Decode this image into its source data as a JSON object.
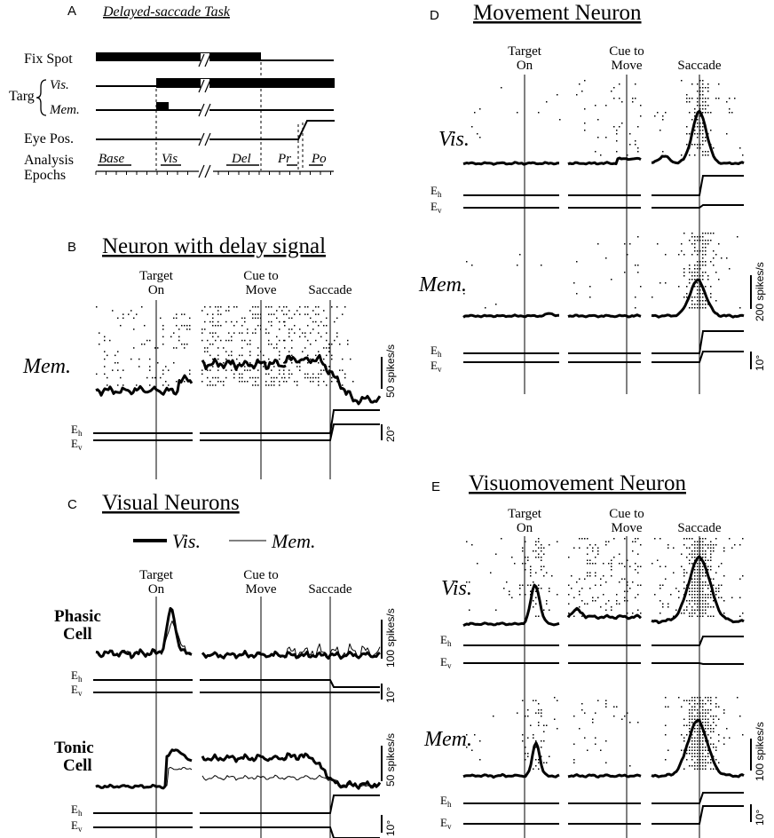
{
  "panel_a": {
    "letter": "A",
    "title": "Delayed-saccade Task",
    "rows": {
      "fix": "Fix Spot",
      "targ": "Targ",
      "vis": "Vis.",
      "mem": "Mem.",
      "eye": "Eye Pos.",
      "analysis": "Analysis",
      "epochs": "Epochs"
    },
    "epoch_labels": {
      "base": "Base",
      "vis": "Vis",
      "del": "Del",
      "pr": "Pr",
      "po": "Po"
    }
  },
  "panel_b": {
    "letter": "B",
    "title": "Neuron with delay signal",
    "cond": "Mem.",
    "align_target": [
      "Target",
      "On"
    ],
    "align_cue": [
      "Cue to",
      "Move"
    ],
    "align_saccade": "Saccade",
    "eh": "E",
    "eh_sub": "h",
    "ev": "E",
    "ev_sub": "v",
    "rate_scale": "50 spikes/s",
    "pos_scale": "20°"
  },
  "panel_c": {
    "letter": "C",
    "title": "Visual Neurons",
    "legend_vis": "Vis.",
    "legend_mem": "Mem.",
    "align_target": [
      "Target",
      "On"
    ],
    "align_cue": [
      "Cue to",
      "Move"
    ],
    "align_saccade": "Saccade",
    "phasic": [
      "Phasic",
      "Cell"
    ],
    "tonic": [
      "Tonic",
      "Cell"
    ],
    "eh": "E",
    "eh_sub": "h",
    "ev": "E",
    "ev_sub": "v",
    "phasic_rate_scale": "100 spikes/s",
    "tonic_rate_scale": "50 spikes/s",
    "pos_scale": "10°"
  },
  "panel_d": {
    "letter": "D",
    "title": "Movement Neuron",
    "align_target": [
      "Target",
      "On"
    ],
    "align_cue": [
      "Cue to",
      "Move"
    ],
    "align_saccade": "Saccade",
    "cond_vis": "Vis.",
    "cond_mem": "Mem.",
    "eh": "E",
    "eh_sub": "h",
    "ev": "E",
    "ev_sub": "v",
    "rate_scale": "200 spikes/s",
    "pos_scale": "10°"
  },
  "panel_e": {
    "letter": "E",
    "title": "Visuomovement Neuron",
    "align_target": [
      "Target",
      "On"
    ],
    "align_cue": [
      "Cue to",
      "Move"
    ],
    "align_saccade": "Saccade",
    "cond_vis": "Vis.",
    "cond_mem": "Mem.",
    "eh": "E",
    "eh_sub": "h",
    "ev": "E",
    "ev_sub": "v",
    "rate_scale": "100 spikes/s",
    "pos_scale": "10°"
  }
}
